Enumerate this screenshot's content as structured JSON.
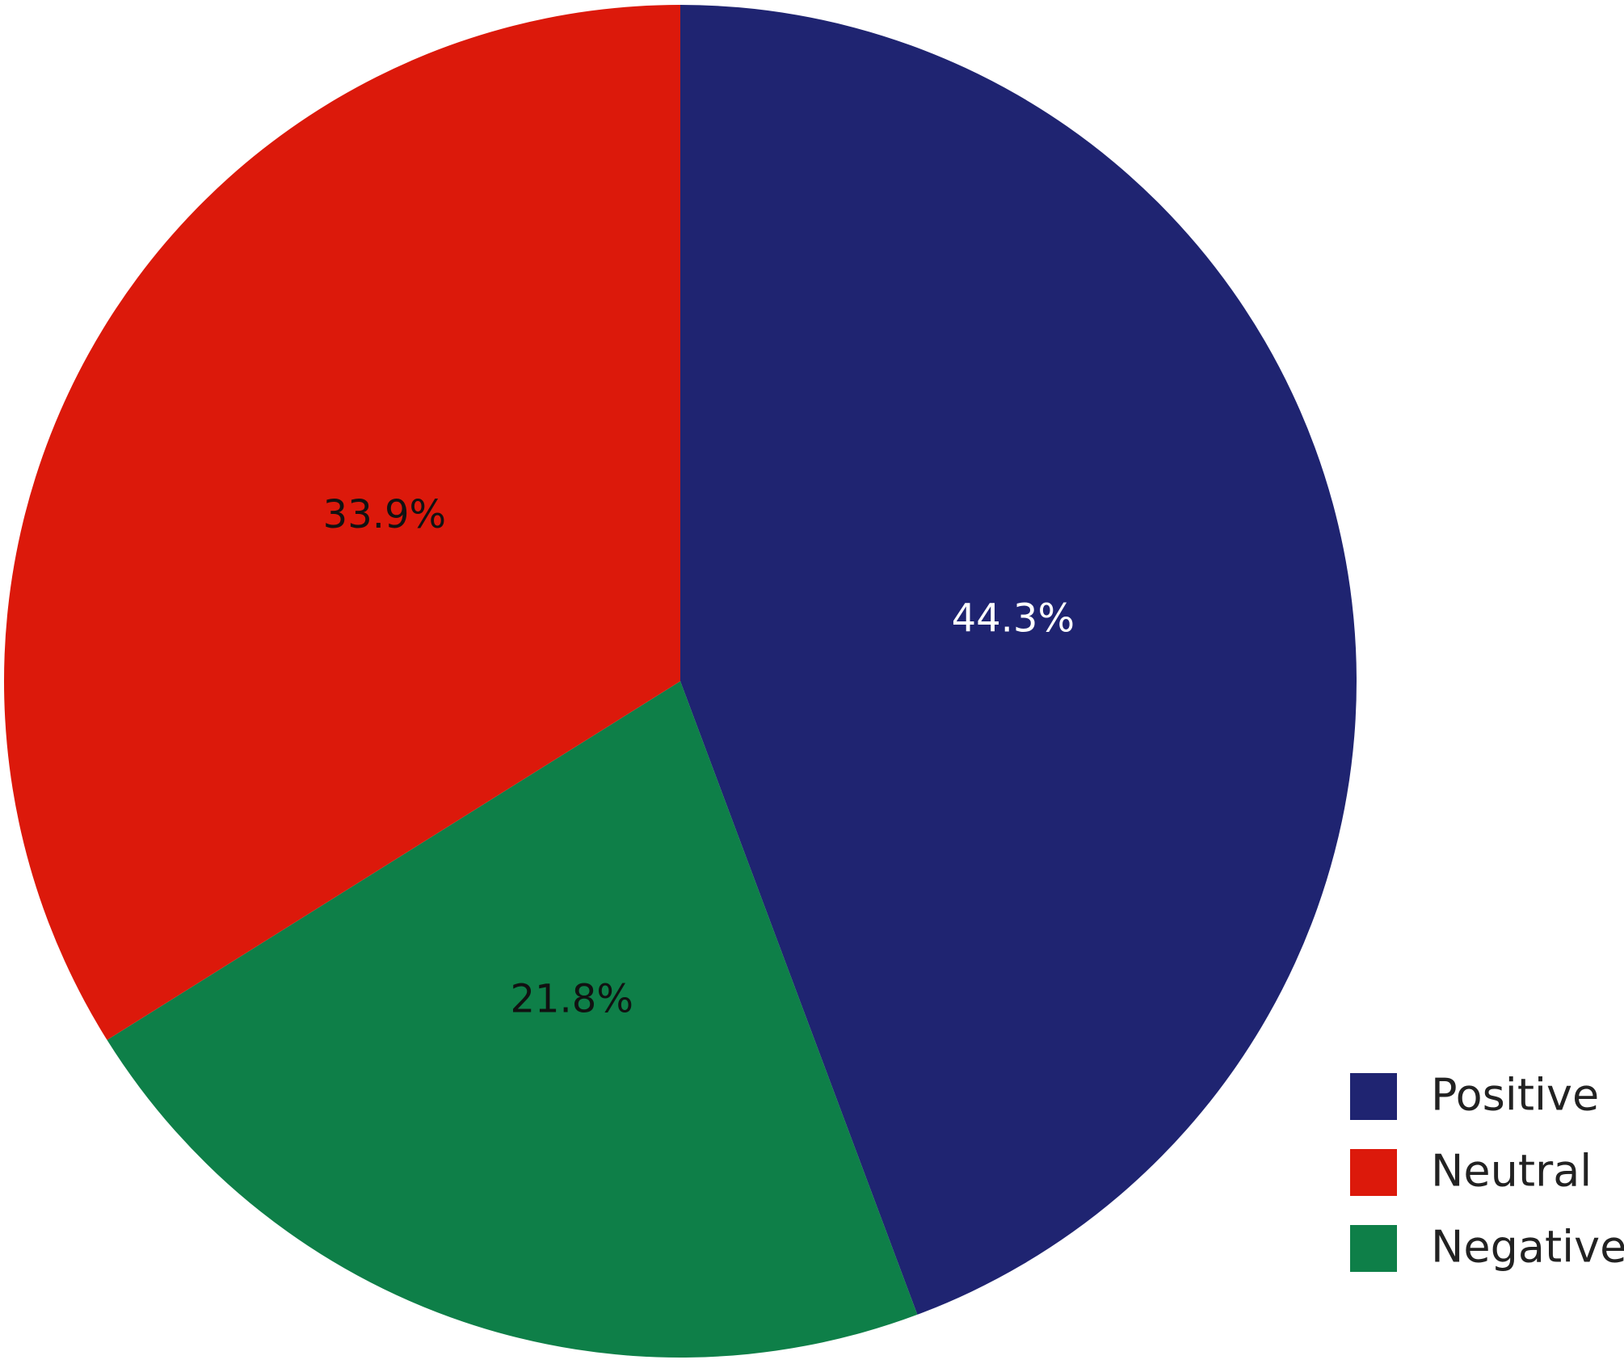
{
  "chart_data": {
    "type": "pie",
    "categories": [
      "Positive",
      "Neutral",
      "Negative"
    ],
    "values": [
      44.3,
      33.9,
      21.8
    ],
    "value_labels": [
      "44.3%",
      "33.9%",
      "21.8%"
    ],
    "colors": [
      "#1f2471",
      "#dc190b",
      "#0e7f48"
    ],
    "legend": "bottom-right"
  }
}
